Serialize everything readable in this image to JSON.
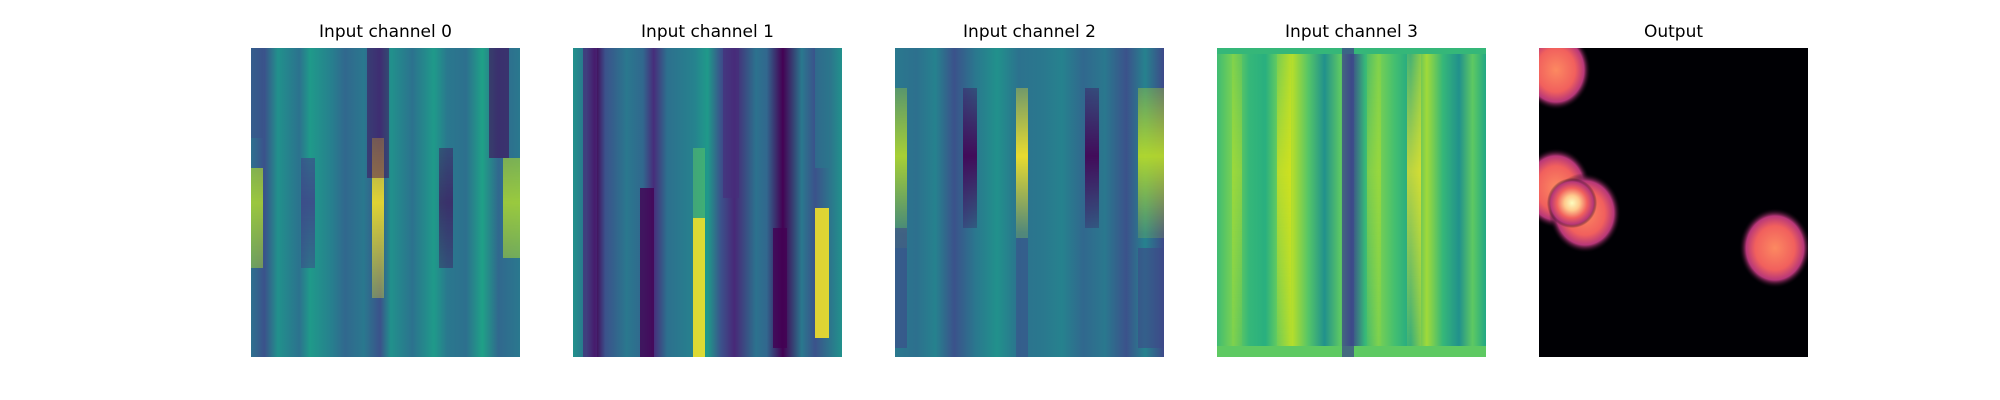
{
  "figure": {
    "panels": [
      {
        "title": "Input channel 0",
        "colormap": "viridis"
      },
      {
        "title": "Input channel 1",
        "colormap": "viridis"
      },
      {
        "title": "Input channel 2",
        "colormap": "viridis"
      },
      {
        "title": "Input channel 3",
        "colormap": "viridis"
      },
      {
        "title": "Output",
        "colormap": "magma"
      }
    ]
  }
}
